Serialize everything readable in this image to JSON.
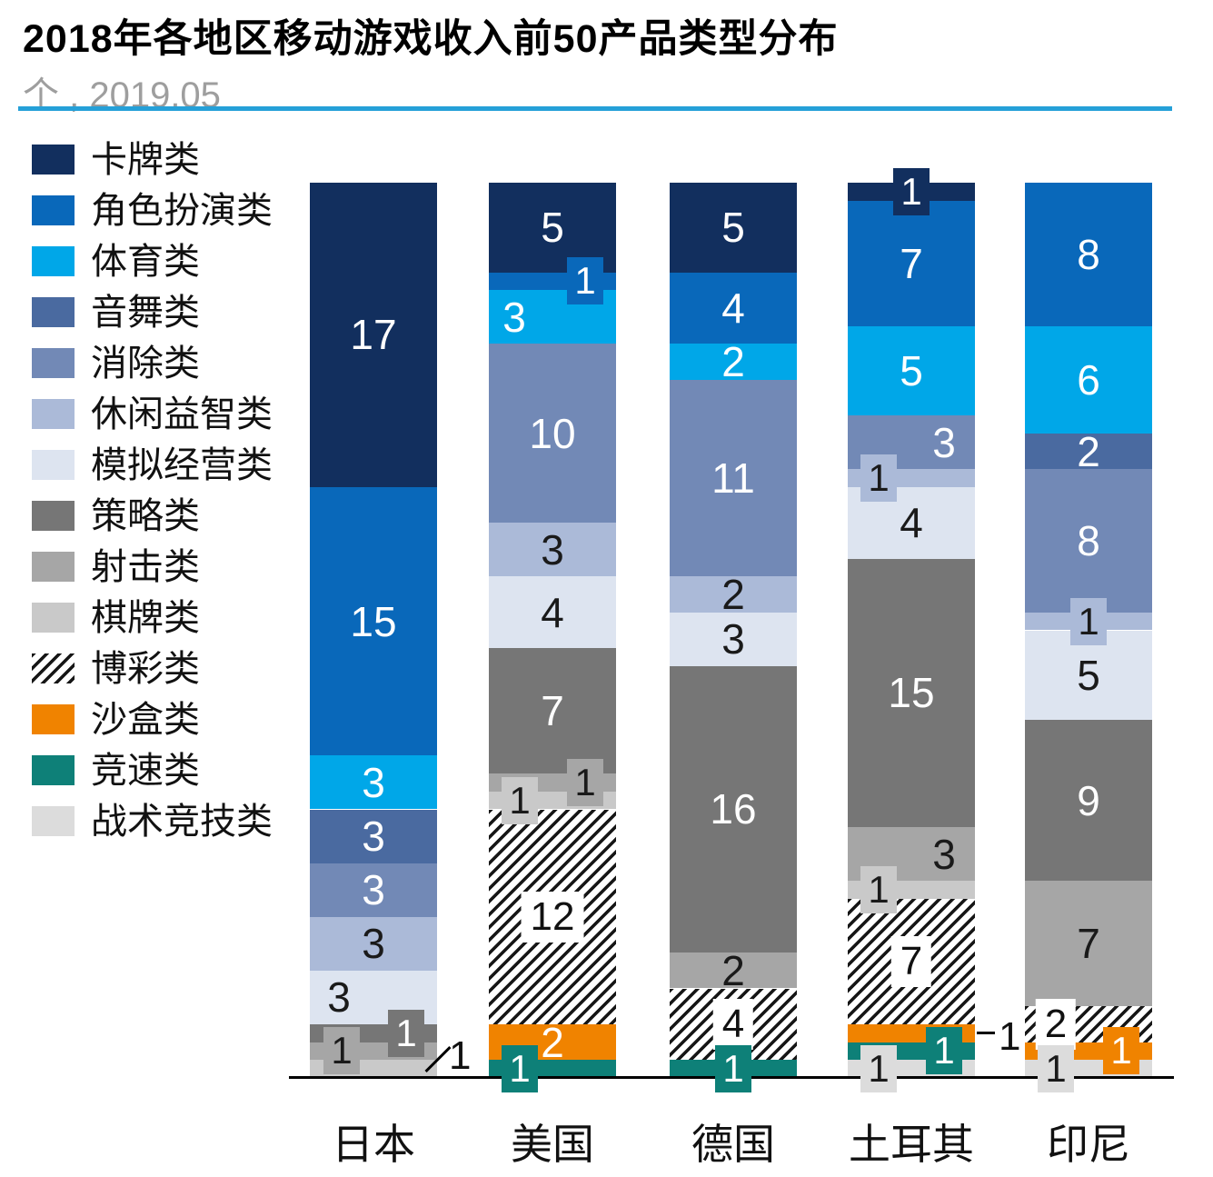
{
  "title": "2018年各地区移动游戏收入前50产品类型分布",
  "subtitle": "个 , 2019.05",
  "colors": {
    "accent_rule": "#25a0d8",
    "axis": "#000000",
    "subtitle_text": "#9e9e9e",
    "hatch_fg": "#161616",
    "hatch_bg": "#ffffff"
  },
  "chart_data": {
    "type": "bar",
    "stacked": true,
    "unit_label": "个",
    "title": "2018年各地区移动游戏收入前50产品类型分布",
    "legend_position": "left",
    "grid": false,
    "categories": [
      "日本",
      "美国",
      "德国",
      "土耳其",
      "印尼"
    ],
    "totals": [
      50,
      50,
      50,
      50,
      50
    ],
    "series": [
      {
        "name": "卡牌类",
        "color": "#122f5e",
        "text": "#ffffff",
        "values": [
          17,
          5,
          5,
          1,
          0
        ]
      },
      {
        "name": "角色扮演类",
        "color": "#0968ba",
        "text": "#ffffff",
        "values": [
          15,
          1,
          4,
          7,
          8
        ]
      },
      {
        "name": "体育类",
        "color": "#00a7e8",
        "text": "#ffffff",
        "values": [
          3,
          3,
          2,
          5,
          6
        ]
      },
      {
        "name": "音舞类",
        "color": "#4a6aa0",
        "text": "#ffffff",
        "values": [
          3,
          0,
          0,
          0,
          2
        ]
      },
      {
        "name": "消除类",
        "color": "#7289b6",
        "text": "#ffffff",
        "values": [
          3,
          10,
          11,
          3,
          8
        ]
      },
      {
        "name": "休闲益智类",
        "color": "#abbad8",
        "text": "#1a1a1a",
        "values": [
          3,
          3,
          2,
          1,
          1
        ]
      },
      {
        "name": "模拟经营类",
        "color": "#dde4f0",
        "text": "#1a1a1a",
        "values": [
          3,
          4,
          3,
          4,
          5
        ]
      },
      {
        "name": "策略类",
        "color": "#767676",
        "text": "#ffffff",
        "values": [
          1,
          7,
          16,
          15,
          9
        ]
      },
      {
        "name": "射击类",
        "color": "#a6a6a6",
        "text": "#1a1a1a",
        "values": [
          1,
          1,
          2,
          3,
          7
        ]
      },
      {
        "name": "棋牌类",
        "color": "#c9c9c9",
        "text": "#1a1a1a",
        "values": [
          1,
          1,
          0,
          1,
          0
        ]
      },
      {
        "name": "博彩类",
        "color": "hatch",
        "text": "#1a1a1a",
        "values": [
          0,
          12,
          4,
          7,
          2
        ]
      },
      {
        "name": "沙盒类",
        "color": "#f08300",
        "text": "#ffffff",
        "values": [
          0,
          2,
          0,
          1,
          1
        ]
      },
      {
        "name": "竞速类",
        "color": "#0e8078",
        "text": "#ffffff",
        "values": [
          0,
          1,
          1,
          1,
          0
        ]
      },
      {
        "name": "战术竞技类",
        "color": "#dcdcdc",
        "text": "#1a1a1a",
        "values": [
          0,
          0,
          0,
          1,
          1
        ]
      }
    ],
    "label_overrides": [
      {
        "series": 6,
        "cat": 0,
        "mode": "in",
        "ldx": -38
      },
      {
        "series": 2,
        "cat": 1,
        "mode": "in",
        "ldx": -42
      },
      {
        "series": 4,
        "cat": 3,
        "mode": "in",
        "ldx": 36
      },
      {
        "series": 8,
        "cat": 3,
        "mode": "in",
        "ldx": 36
      },
      {
        "series": 7,
        "cat": 0,
        "mode": "box",
        "dx": 36
      },
      {
        "series": 8,
        "cat": 0,
        "mode": "box",
        "dx": -35
      },
      {
        "series": 9,
        "cat": 0,
        "mode": "leader-diag"
      },
      {
        "series": 1,
        "cat": 1,
        "mode": "box",
        "dx": 36
      },
      {
        "series": 8,
        "cat": 1,
        "mode": "box",
        "dx": 36
      },
      {
        "series": 9,
        "cat": 1,
        "mode": "box",
        "dx": -36
      },
      {
        "series": 10,
        "cat": 1,
        "mode": "whitebox",
        "dx": 0
      },
      {
        "series": 12,
        "cat": 1,
        "mode": "box",
        "dx": -36
      },
      {
        "series": 10,
        "cat": 2,
        "mode": "whitebox",
        "dx": 0
      },
      {
        "series": 12,
        "cat": 2,
        "mode": "box",
        "dx": 0
      },
      {
        "series": 0,
        "cat": 3,
        "mode": "box",
        "dx": 0
      },
      {
        "series": 5,
        "cat": 3,
        "mode": "box",
        "dx": -36
      },
      {
        "series": 9,
        "cat": 3,
        "mode": "box",
        "dx": -36
      },
      {
        "series": 10,
        "cat": 3,
        "mode": "whitebox",
        "dx": 0
      },
      {
        "series": 11,
        "cat": 3,
        "mode": "leader-right"
      },
      {
        "series": 12,
        "cat": 3,
        "mode": "box",
        "dx": 36
      },
      {
        "series": 13,
        "cat": 3,
        "mode": "box",
        "dx": -36
      },
      {
        "series": 5,
        "cat": 4,
        "mode": "box",
        "dx": 0
      },
      {
        "series": 10,
        "cat": 4,
        "mode": "whitebox",
        "dx": -36
      },
      {
        "series": 11,
        "cat": 4,
        "mode": "box",
        "dx": 36
      },
      {
        "series": 13,
        "cat": 4,
        "mode": "box",
        "dx": -36
      }
    ]
  },
  "x_axis": {
    "labels": [
      "日本",
      "美国",
      "德国",
      "土耳其",
      "印尼"
    ]
  }
}
